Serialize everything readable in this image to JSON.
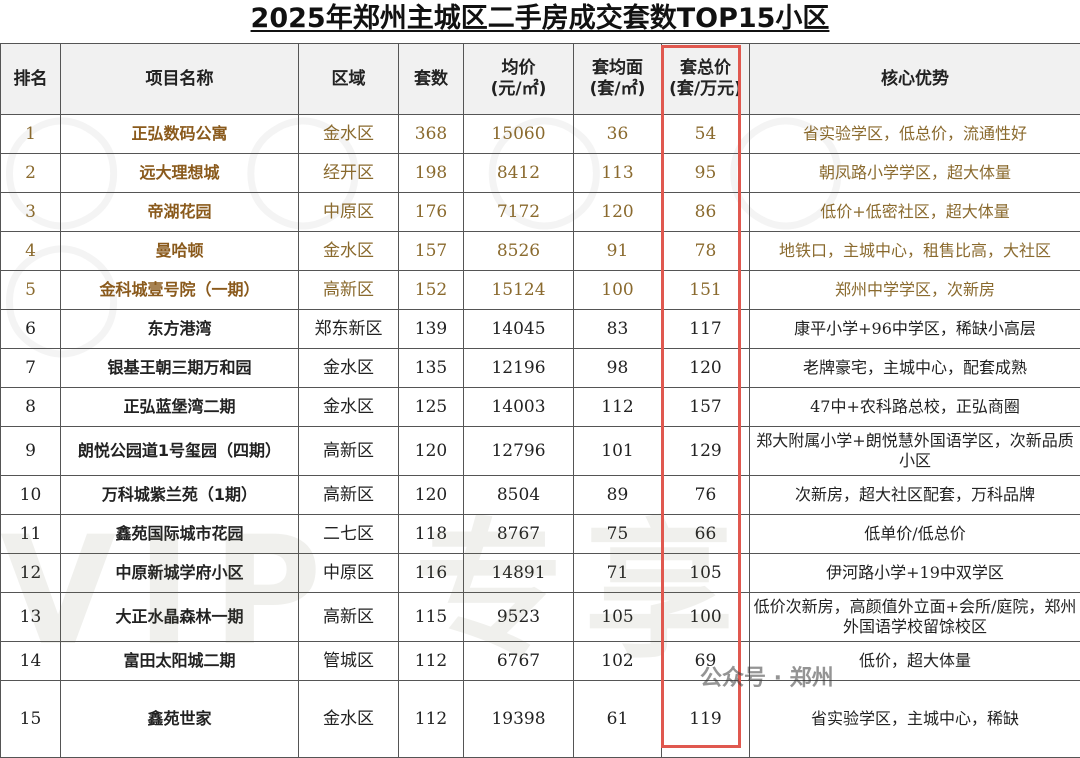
{
  "title": "2025年郑州主城区二手房成交套数TOP15小区",
  "headers": {
    "rank": "排名",
    "name": "项目名称",
    "district": "区域",
    "count": "套数",
    "avg_price_l1": "均价",
    "avg_price_l2": "(元/㎡)",
    "avg_area_l1": "套均面",
    "avg_area_l2": "(套/㎡)",
    "total_l1": "套总价",
    "total_l2": "(套/万元)",
    "advantage": "核心优势"
  },
  "rows": [
    {
      "rank": "1",
      "name": "正弘数码公寓",
      "district": "金水区",
      "count": "368",
      "price": "15060",
      "area": "36",
      "total": "54",
      "adv": "省实验学区，低总价，流通性好"
    },
    {
      "rank": "2",
      "name": "远大理想城",
      "district": "经开区",
      "count": "198",
      "price": "8412",
      "area": "113",
      "total": "95",
      "adv": "朝凤路小学学区，超大体量"
    },
    {
      "rank": "3",
      "name": "帝湖花园",
      "district": "中原区",
      "count": "176",
      "price": "7172",
      "area": "120",
      "total": "86",
      "adv": "低价+低密社区，超大体量"
    },
    {
      "rank": "4",
      "name": "曼哈顿",
      "district": "金水区",
      "count": "157",
      "price": "8526",
      "area": "91",
      "total": "78",
      "adv": "地铁口，主城中心，租售比高，大社区"
    },
    {
      "rank": "5",
      "name": "金科城壹号院（一期）",
      "district": "高新区",
      "count": "152",
      "price": "15124",
      "area": "100",
      "total": "151",
      "adv": "郑州中学学区，次新房"
    },
    {
      "rank": "6",
      "name": "东方港湾",
      "district": "郑东新区",
      "count": "139",
      "price": "14045",
      "area": "83",
      "total": "117",
      "adv": "康平小学+96中学区，稀缺小高层"
    },
    {
      "rank": "7",
      "name": "银基王朝三期万和园",
      "district": "金水区",
      "count": "135",
      "price": "12196",
      "area": "98",
      "total": "120",
      "adv": "老牌豪宅，主城中心，配套成熟"
    },
    {
      "rank": "8",
      "name": "正弘蓝堡湾二期",
      "district": "金水区",
      "count": "125",
      "price": "14003",
      "area": "112",
      "total": "157",
      "adv": "47中+农科路总校，正弘商圈"
    },
    {
      "rank": "9",
      "name": "朗悦公园道1号玺园（四期）",
      "district": "高新区",
      "count": "120",
      "price": "12796",
      "area": "101",
      "total": "129",
      "adv": "郑大附属小学+朗悦慧外国语学区，次新品质小区"
    },
    {
      "rank": "10",
      "name": "万科城紫兰苑（1期）",
      "district": "高新区",
      "count": "120",
      "price": "8504",
      "area": "89",
      "total": "76",
      "adv": "次新房，超大社区配套，万科品牌"
    },
    {
      "rank": "11",
      "name": "鑫苑国际城市花园",
      "district": "二七区",
      "count": "118",
      "price": "8767",
      "area": "75",
      "total": "66",
      "adv": "低单价/低总价"
    },
    {
      "rank": "12",
      "name": "中原新城学府小区",
      "district": "中原区",
      "count": "116",
      "price": "14891",
      "area": "71",
      "total": "105",
      "adv": "伊河路小学+19中双学区"
    },
    {
      "rank": "13",
      "name": "大正水晶森林一期",
      "district": "高新区",
      "count": "115",
      "price": "9523",
      "area": "105",
      "total": "100",
      "adv": "低价次新房，高颜值外立面+会所/庭院，郑州外国语学校留馀校区"
    },
    {
      "rank": "14",
      "name": "富田太阳城二期",
      "district": "管城区",
      "count": "112",
      "price": "6767",
      "area": "102",
      "total": "69",
      "adv": "低价，超大体量"
    },
    {
      "rank": "15",
      "name": "鑫苑世家",
      "district": "金水区",
      "count": "112",
      "price": "19398",
      "area": "61",
      "total": "119",
      "adv": "省实验学区，主城中心，稀缺"
    }
  ],
  "overlay_caption": "公众号 · 郑州"
}
